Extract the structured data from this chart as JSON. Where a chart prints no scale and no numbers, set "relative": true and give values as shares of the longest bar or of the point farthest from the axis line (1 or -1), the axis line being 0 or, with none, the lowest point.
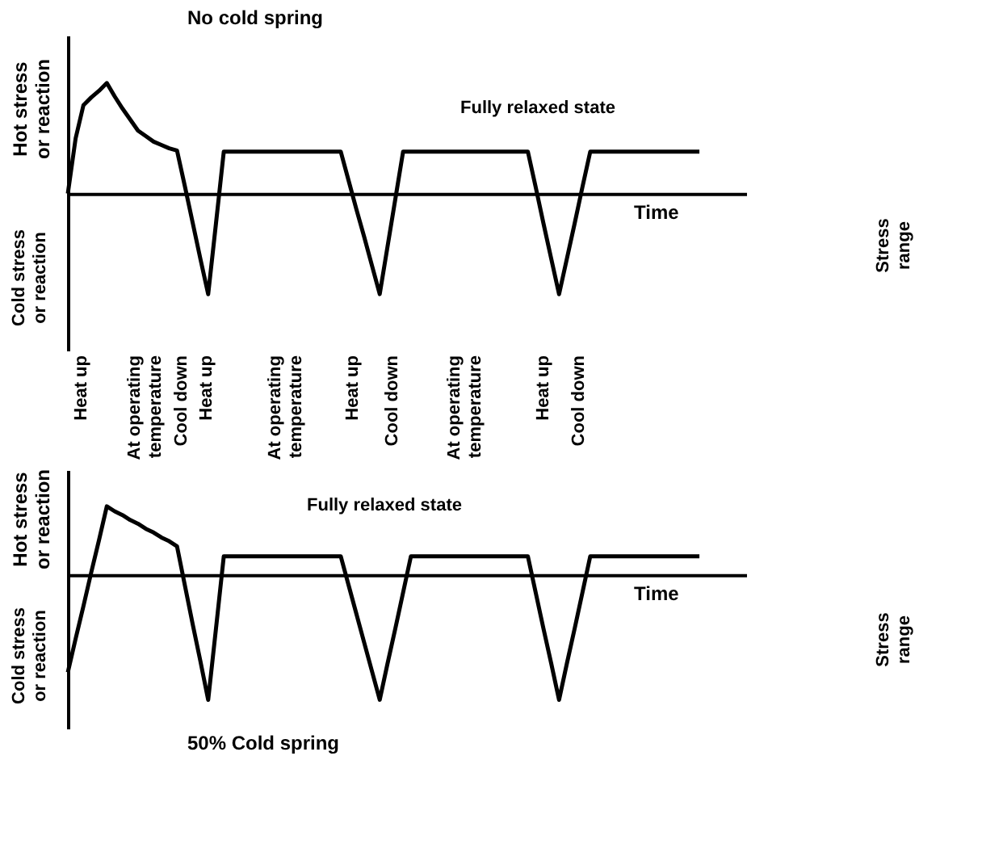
{
  "chart_data": [
    {
      "type": "line",
      "title": "No cold spring",
      "xlabel": "Time",
      "ylabel": "Hot stress or reaction",
      "relative": true,
      "tick_labels": false,
      "color": "#000000",
      "categories": [
        null,
        null,
        null,
        null,
        null,
        null,
        null,
        null,
        null,
        null,
        null,
        null,
        null,
        null,
        null,
        null,
        null,
        null,
        null,
        null,
        null,
        null,
        null,
        null,
        null,
        null,
        null,
        null,
        null,
        null,
        null,
        null,
        null,
        null,
        null,
        null,
        null,
        null,
        null,
        null,
        null,
        null,
        null,
        null,
        null,
        null,
        null,
        null,
        null,
        null,
        null,
        null,
        null,
        null,
        null,
        null,
        null,
        null,
        null,
        null,
        null,
        null,
        null,
        null,
        null,
        null,
        null,
        null,
        null,
        null,
        null,
        null,
        null,
        null,
        null,
        null,
        null,
        null,
        null,
        null,
        null,
        null
      ],
      "values": [
        0,
        0.5,
        0.8,
        0.87,
        0.93,
        1,
        0.88,
        0.77,
        0.67,
        0.57,
        0.52,
        0.47,
        0.44,
        0.41,
        0.39,
        0.07,
        -0.26,
        -0.59,
        -0.91,
        -0.27,
        0.38,
        0.38,
        0.38,
        0.38,
        0.38,
        0.38,
        0.38,
        0.38,
        0.38,
        0.38,
        0.38,
        0.38,
        0.38,
        0.38,
        0.38,
        0.38,
        0.12,
        -0.14,
        -0.39,
        -0.65,
        -0.91,
        -0.48,
        -0.05,
        0.38,
        0.38,
        0.38,
        0.38,
        0.38,
        0.38,
        0.38,
        0.38,
        0.38,
        0.38,
        0.38,
        0.38,
        0.38,
        0.38,
        0.38,
        0.38,
        0.38,
        0.06,
        -0.27,
        -0.59,
        -0.91,
        -0.59,
        -0.27,
        0.06,
        0.38,
        0.38,
        0.38,
        0.38,
        0.38,
        0.38,
        0.38,
        0.38,
        0.38,
        0.38,
        0.38,
        0.38,
        0.38,
        0.38,
        0.38
      ],
      "annotations": [
        "Cold stress or reaction",
        "Fully relaxed state",
        "Stress range",
        "Heat up",
        "At operating temperature",
        "Cool down",
        "Heat up",
        "At operating temperature",
        "Heat up",
        "Cool down",
        "At operating temperature",
        "Heat up",
        "Cool down"
      ]
    },
    {
      "type": "line",
      "title": "50% Cold spring",
      "xlabel": "Time",
      "ylabel": "Hot stress or reaction",
      "relative": true,
      "tick_labels": false,
      "color": "#000000",
      "categories": [
        null,
        null,
        null,
        null,
        null,
        null,
        null,
        null,
        null,
        null,
        null,
        null,
        null,
        null,
        null,
        null,
        null,
        null,
        null,
        null,
        null,
        null,
        null,
        null,
        null,
        null,
        null,
        null,
        null,
        null,
        null,
        null,
        null,
        null,
        null,
        null,
        null,
        null,
        null,
        null,
        null,
        null,
        null,
        null,
        null,
        null,
        null,
        null,
        null,
        null,
        null,
        null,
        null,
        null,
        null,
        null,
        null,
        null,
        null,
        null,
        null,
        null,
        null,
        null,
        null,
        null,
        null,
        null,
        null,
        null,
        null,
        null,
        null,
        null,
        null,
        null,
        null,
        null,
        null,
        null,
        null,
        null
      ],
      "values": [
        -0.78,
        -0.51,
        -0.25,
        0.02,
        0.28,
        0.55,
        0.51,
        0.48,
        0.44,
        0.41,
        0.37,
        0.34,
        0.3,
        0.27,
        0.23,
        -0.08,
        -0.39,
        -0.69,
        -1,
        -0.43,
        0.15,
        0.15,
        0.15,
        0.15,
        0.15,
        0.15,
        0.15,
        0.15,
        0.15,
        0.15,
        0.15,
        0.15,
        0.15,
        0.15,
        0.15,
        0.15,
        -0.08,
        -0.31,
        -0.54,
        -0.77,
        -1,
        -0.71,
        -0.43,
        -0.14,
        0.15,
        0.15,
        0.15,
        0.15,
        0.15,
        0.15,
        0.15,
        0.15,
        0.15,
        0.15,
        0.15,
        0.15,
        0.15,
        0.15,
        0.15,
        0.15,
        -0.14,
        -0.43,
        -0.71,
        -1,
        -0.71,
        -0.43,
        -0.14,
        0.15,
        0.15,
        0.15,
        0.15,
        0.15,
        0.15,
        0.15,
        0.15,
        0.15,
        0.15,
        0.15,
        0.15,
        0.15,
        0.15,
        0.15
      ],
      "annotations": [
        "Cold stress or reaction",
        "Fully relaxed state",
        "Stress range"
      ]
    }
  ]
}
